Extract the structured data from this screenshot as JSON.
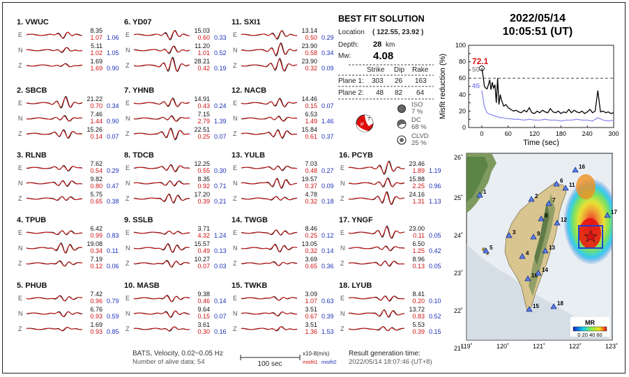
{
  "stations": [
    {
      "label": "1.  VWUC",
      "rows": [
        [
          "8.35",
          "1.07",
          "1.06"
        ],
        [
          "5.11",
          "1.02",
          "1.05"
        ],
        [
          "1.69",
          "1.69",
          "0.90"
        ]
      ]
    },
    {
      "label": "2.  SBCB",
      "rows": [
        [
          "21.22",
          "0.70",
          "0.34"
        ],
        [
          "7.46",
          "1.44",
          "0.90"
        ],
        [
          "15.26",
          "0.14",
          "0.07"
        ]
      ]
    },
    {
      "label": "3.  RLNB",
      "rows": [
        [
          "7.62",
          "0.54",
          "0.29"
        ],
        [
          "9.82",
          "0.80",
          "0.47"
        ],
        [
          "5.75",
          "0.65",
          "0.38"
        ]
      ]
    },
    {
      "label": "4.  TPUB",
      "rows": [
        [
          "6.42",
          "0.99",
          "0.83"
        ],
        [
          "19.08",
          "0.34",
          "0.11"
        ],
        [
          "7.19",
          "0.12",
          "0.06"
        ]
      ]
    },
    {
      "label": "5.  PHUB",
      "rows": [
        [
          "7.42",
          "0.96",
          "0.79"
        ],
        [
          "6.76",
          "0.93",
          "0.59"
        ],
        [
          "1.69",
          "0.93",
          "0.85"
        ]
      ]
    },
    {
      "label": "6.  YD07",
      "rows": [
        [
          "15.03",
          "0.60",
          "0.33"
        ],
        [
          "11.20",
          "1.01",
          "0.52"
        ],
        [
          "28.21",
          "0.42",
          "0.19"
        ]
      ]
    },
    {
      "label": "7.  YHNB",
      "rows": [
        [
          "14.91",
          "0.43",
          "0.24"
        ],
        [
          "7.15",
          "2.79",
          "1.39"
        ],
        [
          "22.51",
          "0.25",
          "0.07"
        ]
      ]
    },
    {
      "label": "8.  TDCB",
      "rows": [
        [
          "12.25",
          "0.55",
          "0.30"
        ],
        [
          "8.35",
          "0.92",
          "0.71"
        ],
        [
          "17.20",
          "0.39",
          "0.21"
        ]
      ]
    },
    {
      "label": "9.  SSLB",
      "rows": [
        [
          "3.71",
          "4.32",
          "1.24"
        ],
        [
          "15.57",
          "0.49",
          "0.13"
        ],
        [
          "10.27",
          "0.07",
          "0.03"
        ]
      ]
    },
    {
      "label": "10. MASB",
      "rows": [
        [
          "9.38",
          "0.46",
          "0.14"
        ],
        [
          "9.64",
          "0.15",
          "0.07"
        ],
        [
          "3.61",
          "0.30",
          "0.16"
        ]
      ]
    },
    {
      "label": "11. SXI1",
      "rows": [
        [
          "13.14",
          "0.50",
          "0.29"
        ],
        [
          "23.90",
          "0.58",
          "0.34"
        ],
        [
          "23.90",
          "0.32",
          "0.09"
        ]
      ]
    },
    {
      "label": "12. NACB",
      "rows": [
        [
          "14.46",
          "0.15",
          "0.07"
        ],
        [
          "6.53",
          "1.49",
          "1.46"
        ],
        [
          "15.84",
          "0.61",
          "0.37"
        ]
      ]
    },
    {
      "label": "13. YULB",
      "rows": [
        [
          "7.03",
          "0.48",
          "0.27"
        ],
        [
          "19.57",
          "0.37",
          "0.09"
        ],
        [
          "4.78",
          "0.32",
          "0.18"
        ]
      ]
    },
    {
      "label": "14. TWGB",
      "rows": [
        [
          "8.46",
          "0.25",
          "0.12"
        ],
        [
          "13.05",
          "0.32",
          "0.14"
        ],
        [
          "3.69",
          "0.65",
          "0.36"
        ]
      ]
    },
    {
      "label": "15. TWKB",
      "rows": [
        [
          "3.09",
          "1.07",
          "0.63"
        ],
        [
          "3.51",
          "0.67",
          "0.39"
        ],
        [
          "3.51",
          "1.36",
          "1.53"
        ]
      ]
    },
    {
      "label": "16. PCYB",
      "rows": [
        [
          "23.46",
          "1.89",
          "1.19"
        ],
        [
          "15.88",
          "2.25",
          "0.96"
        ],
        [
          "24.16",
          "1.31",
          "1.13"
        ]
      ]
    },
    {
      "label": "17. YNGF",
      "rows": [
        [
          "23.00",
          "0.11",
          "0.05"
        ],
        [
          "6.50",
          "1.25",
          "0.42"
        ],
        [
          "8.96",
          "0.13",
          "0.05"
        ]
      ]
    },
    {
      "label": "18. LYUB",
      "rows": [
        [
          "8.41",
          "0.20",
          "0.10"
        ],
        [
          "13.72",
          "0.83",
          "0.52"
        ],
        [
          "5.53",
          "0.39",
          "0.15"
        ]
      ]
    }
  ],
  "components": [
    "E",
    "N",
    "Z"
  ],
  "solution": {
    "title": "BEST FIT SOLUTION",
    "location_label": "Location",
    "location_value": "( 122.55,  23.92 )",
    "depth_label": "Depth:",
    "depth_value": "28",
    "depth_unit": "km",
    "mw_label": "Mw:",
    "mw_value": "4.08",
    "headers": [
      "Strike",
      "Dip",
      "Rake"
    ],
    "plane1_label": "Plane 1:",
    "plane1": [
      "303",
      "26",
      "163"
    ],
    "plane2_label": "Plane 2:",
    "plane2": [
      "48",
      "82",
      "64"
    ],
    "iso_label": "ISO",
    "iso_value": "7 %",
    "dc_label": "DC",
    "dc_value": "68 %",
    "clvd_label": "CLVD",
    "clvd_value": "25 %"
  },
  "datetime": {
    "date": "2022/05/14",
    "time": "10:05:51  (UT)"
  },
  "footer": {
    "bats": "BATS, Velocity, 0.02~0.05 Hz",
    "alive": "Number of alive data: 54",
    "scale_label": "100 sec",
    "units": "x10-8(m/s)",
    "misfit1": "misfit1",
    "misfit2": "misfit2",
    "gen_label": "Result generation time:",
    "gen_value": "2022/05/14 18:07:46 (UT+8)"
  },
  "chart_data": {
    "type": "line",
    "xlabel": "Time (sec)",
    "ylabel": "Misfit reduction (%)",
    "xlim": [
      -30,
      300
    ],
    "ylim": [
      0,
      100
    ],
    "xticks": [
      0,
      60,
      120,
      180,
      240,
      300
    ],
    "yticks": [
      0,
      10,
      20,
      30,
      40,
      50,
      60,
      70,
      80,
      90,
      100
    ],
    "reference_line": 60,
    "annotations": [
      {
        "text": "72.1",
        "color": "#dd1111"
      },
      {
        "text": "50",
        "color": "#999999"
      },
      {
        "text": "45",
        "color": "#8c8cf0"
      }
    ],
    "series": [
      {
        "color": "#000000",
        "x": [
          0,
          3,
          6,
          9,
          12,
          15,
          18,
          21,
          24,
          27,
          30,
          33,
          36,
          39,
          42,
          45,
          50,
          55,
          60,
          66,
          72,
          78,
          84,
          90,
          96,
          102,
          108,
          114,
          120,
          126,
          132,
          138,
          144,
          150,
          156,
          162,
          168,
          174,
          180,
          186,
          192,
          198,
          204,
          210,
          216,
          222,
          228,
          234,
          240,
          246,
          252,
          258,
          264,
          270,
          276,
          282,
          288,
          294,
          300
        ],
        "y": [
          72,
          62,
          50,
          48,
          47,
          52,
          58,
          46,
          55,
          48,
          52,
          30,
          60,
          28,
          40,
          33,
          26,
          28,
          24,
          22,
          20,
          21,
          19,
          18,
          21,
          19,
          24,
          18,
          17,
          20,
          18,
          21,
          19,
          18,
          23,
          19,
          18,
          20,
          17,
          19,
          18,
          22,
          18,
          21,
          19,
          18,
          20,
          17,
          19,
          22,
          18,
          20,
          45,
          19,
          20,
          18,
          19,
          17,
          18
        ]
      },
      {
        "color": "#8c8cf0",
        "x": [
          0,
          6,
          12,
          18,
          24,
          30,
          36,
          42,
          48,
          54,
          60,
          72,
          84,
          96,
          108,
          120,
          132,
          144,
          156,
          168,
          180,
          192,
          204,
          216,
          228,
          240,
          252,
          264,
          276,
          288,
          300
        ],
        "y": [
          45,
          25,
          18,
          16,
          15,
          14,
          13,
          12,
          12,
          11,
          11,
          10,
          10,
          9,
          10,
          9,
          9,
          10,
          9,
          9,
          8,
          9,
          9,
          10,
          9,
          9,
          8,
          12,
          9,
          8,
          9
        ]
      }
    ]
  },
  "map": {
    "lon_ticks": [
      "119˚",
      "120˚",
      "121˚",
      "122˚",
      "123˚"
    ],
    "lat_ticks": [
      "26˚",
      "25˚",
      "24˚",
      "23˚",
      "22˚",
      "21˚"
    ],
    "stations": [
      "1",
      "2",
      "3",
      "4",
      "5",
      "6",
      "7",
      "8",
      "9",
      "10",
      "11",
      "12",
      "13",
      "14",
      "15",
      "16",
      "17",
      "18"
    ],
    "colorbar_title": "MR",
    "colorbar_ticks": "0  20  40  60"
  }
}
